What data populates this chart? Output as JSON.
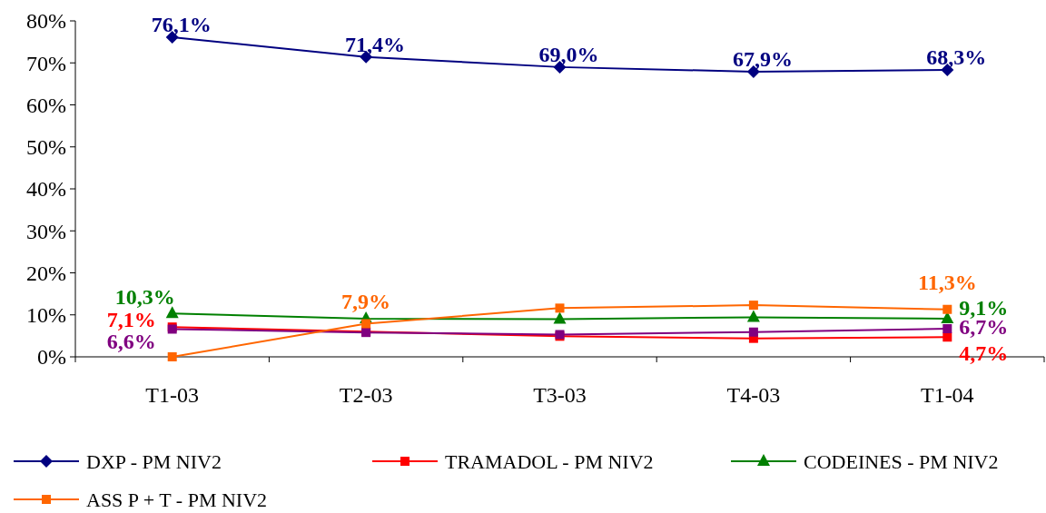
{
  "chart_data": {
    "type": "line",
    "categories": [
      "T1-03",
      "T2-03",
      "T3-03",
      "T4-03",
      "T1-04"
    ],
    "ylim": [
      0,
      80
    ],
    "yticks": [
      {
        "value": 0,
        "label": "0%"
      },
      {
        "value": 10,
        "label": "10%"
      },
      {
        "value": 20,
        "label": "20%"
      },
      {
        "value": 30,
        "label": "30%"
      },
      {
        "value": 40,
        "label": "40%"
      },
      {
        "value": 50,
        "label": "50%"
      },
      {
        "value": 60,
        "label": "60%"
      },
      {
        "value": 70,
        "label": "70%"
      },
      {
        "value": 80,
        "label": "80%"
      }
    ],
    "grid": false,
    "legend": "bottom",
    "series": [
      {
        "name": "DXP - PM NIV2",
        "color": "#000080",
        "marker": "diamond",
        "values": [
          76.1,
          71.4,
          69.0,
          67.9,
          68.3
        ],
        "value_labels": [
          "76,1%",
          "71,4%",
          "69,0%",
          "67,9%",
          "68,3%"
        ]
      },
      {
        "name": "TRAMADOL - PM NIV2",
        "color": "#ff0000",
        "marker": "square",
        "values": [
          7.1,
          6.0,
          4.9,
          4.4,
          4.7
        ],
        "value_labels": [
          "7,1%",
          null,
          null,
          null,
          "4,7%"
        ]
      },
      {
        "name": "CODEINES - PM NIV2",
        "color": "#008000",
        "marker": "triangle",
        "values": [
          10.3,
          9.1,
          9.0,
          9.4,
          9.1
        ],
        "value_labels": [
          "10,3%",
          null,
          null,
          null,
          "9,1%"
        ]
      },
      {
        "color": "#800080",
        "marker": "square",
        "values": [
          6.6,
          5.8,
          5.3,
          5.9,
          6.7
        ],
        "value_labels": [
          "6,6%",
          null,
          null,
          null,
          "6,7%"
        ]
      },
      {
        "name": "ASS P + T - PM NIV2",
        "color": "#ff6600",
        "marker": "square",
        "values": [
          0,
          7.9,
          11.6,
          12.3,
          11.3
        ],
        "value_labels": [
          null,
          "7,9%",
          null,
          null,
          "11,3%"
        ]
      }
    ]
  }
}
